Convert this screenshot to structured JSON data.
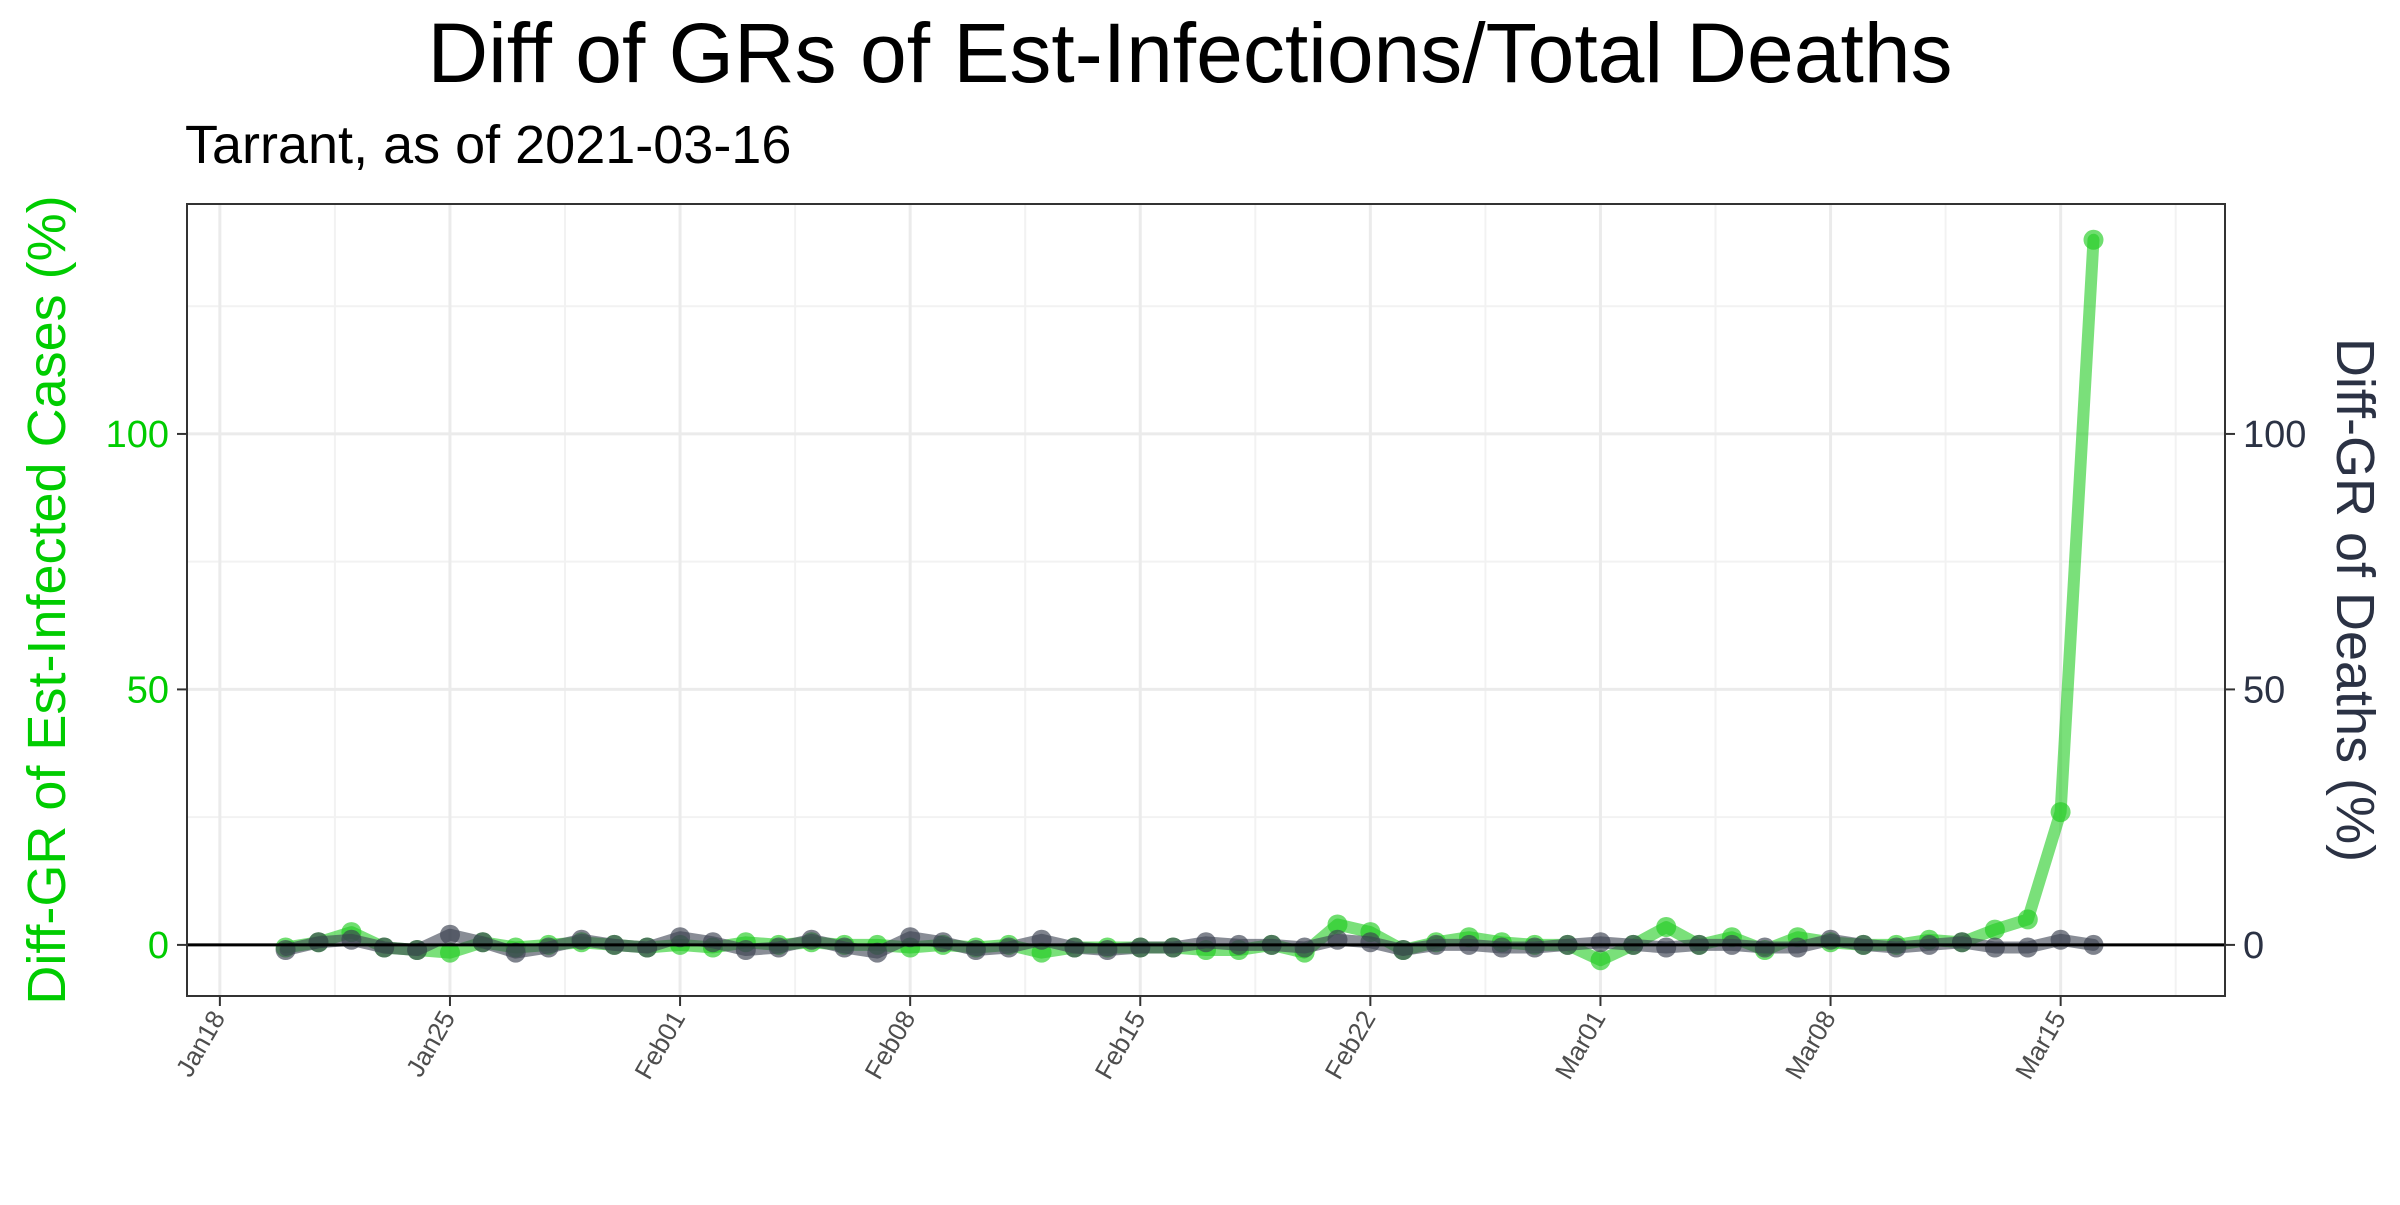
{
  "chart_data": {
    "type": "line",
    "title": "Diff of GRs of Est-Infections/Total Deaths",
    "subtitle": "Tarrant, as of 2021-03-16",
    "ylabel_left": "Diff-GR of Est-Infected Cases (%)",
    "ylabel_right": "Diff-GR of Deaths (%)",
    "xlabel": "",
    "x_tick_labels": [
      "Jan18",
      "Jan25",
      "Feb01",
      "Feb08",
      "Feb15",
      "Feb22",
      "Mar01",
      "Mar08",
      "Mar15"
    ],
    "x_tick_dates": [
      "2021-01-18",
      "2021-01-25",
      "2021-02-01",
      "2021-02-08",
      "2021-02-15",
      "2021-02-22",
      "2021-03-01",
      "2021-03-08",
      "2021-03-15"
    ],
    "xlim": [
      "2021-01-17",
      "2021-03-20"
    ],
    "y_ticks": [
      0,
      50,
      100
    ],
    "ylim": [
      -10,
      145
    ],
    "grid": true,
    "zero_line": true,
    "colors": {
      "infections": "#22cc22",
      "deaths": "#3a4150",
      "left_axis_text": "#00cc00",
      "right_axis_text": "#2b3244",
      "tick_text": "#333333",
      "grid": "#ebebeb",
      "zero_line": "#000000"
    },
    "x": [
      "2021-01-20",
      "2021-01-21",
      "2021-01-22",
      "2021-01-23",
      "2021-01-24",
      "2021-01-25",
      "2021-01-26",
      "2021-01-27",
      "2021-01-28",
      "2021-01-29",
      "2021-01-30",
      "2021-01-31",
      "2021-02-01",
      "2021-02-02",
      "2021-02-03",
      "2021-02-04",
      "2021-02-05",
      "2021-02-06",
      "2021-02-07",
      "2021-02-08",
      "2021-02-09",
      "2021-02-10",
      "2021-02-11",
      "2021-02-12",
      "2021-02-13",
      "2021-02-14",
      "2021-02-15",
      "2021-02-16",
      "2021-02-17",
      "2021-02-18",
      "2021-02-19",
      "2021-02-20",
      "2021-02-21",
      "2021-02-22",
      "2021-02-23",
      "2021-02-24",
      "2021-02-25",
      "2021-02-26",
      "2021-02-27",
      "2021-02-28",
      "2021-03-01",
      "2021-03-02",
      "2021-03-03",
      "2021-03-04",
      "2021-03-05",
      "2021-03-06",
      "2021-03-07",
      "2021-03-08",
      "2021-03-09",
      "2021-03-10",
      "2021-03-11",
      "2021-03-12",
      "2021-03-13",
      "2021-03-14",
      "2021-03-15",
      "2021-03-16"
    ],
    "series": [
      {
        "name": "infections",
        "axis": "left",
        "values": [
          -0.5,
          0.5,
          2.5,
          -0.5,
          -1,
          -1.5,
          0.5,
          -0.5,
          0,
          0.5,
          0,
          -0.5,
          0,
          -0.5,
          0.5,
          0,
          0.5,
          0,
          0,
          -0.5,
          0,
          -0.5,
          0,
          -1.5,
          -0.5,
          -0.5,
          -0.5,
          -0.5,
          -1,
          -1,
          0,
          -1.5,
          4,
          2.5,
          -1,
          0.5,
          1.5,
          0.5,
          0,
          0,
          -3,
          0,
          3.5,
          0,
          1.5,
          -1,
          1.5,
          0.5,
          0,
          0,
          1,
          0.5,
          3,
          5,
          26,
          138
        ]
      },
      {
        "name": "deaths",
        "axis": "right",
        "values": [
          -1,
          0.5,
          1,
          -0.5,
          -1,
          2,
          0.5,
          -1.5,
          -0.5,
          1,
          0,
          -0.5,
          1.5,
          0.5,
          -1,
          -0.5,
          1,
          -0.5,
          -1.5,
          1.5,
          0.5,
          -1,
          -0.5,
          1,
          -0.5,
          -1,
          -0.5,
          -0.5,
          0.5,
          0,
          0,
          -0.5,
          1,
          0.5,
          -1,
          0,
          0,
          -0.5,
          -0.5,
          0,
          0.5,
          0,
          -0.5,
          0,
          0,
          -0.5,
          -0.5,
          1,
          0,
          -0.5,
          0,
          0.5,
          -0.5,
          -0.5,
          1,
          0
        ]
      }
    ]
  }
}
